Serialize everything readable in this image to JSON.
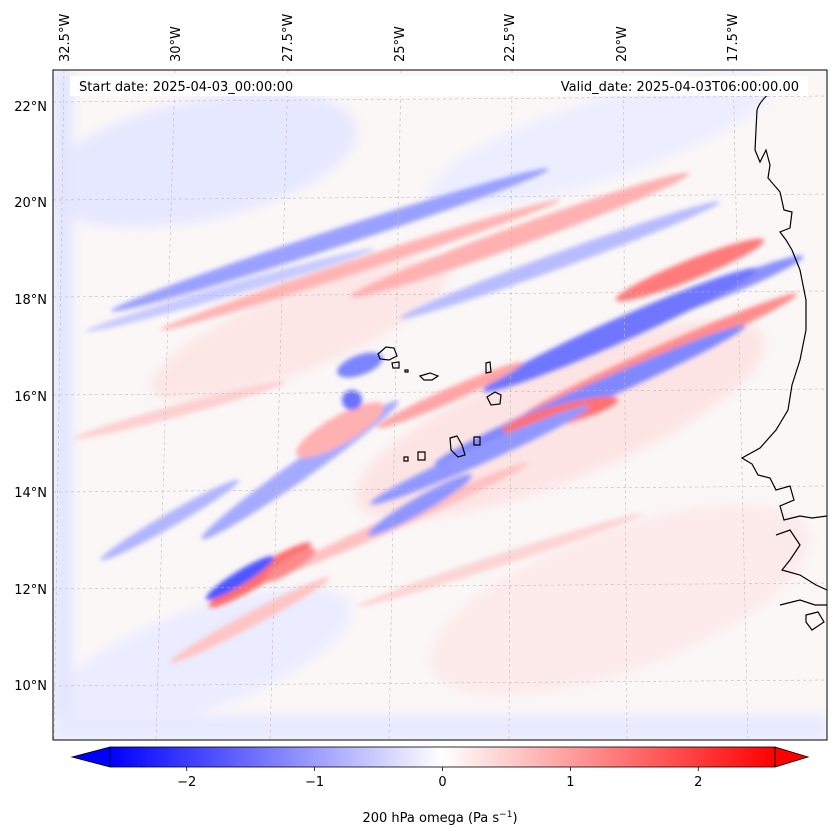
{
  "map": {
    "start_date": "Start date: 2025-04-03_00:00:00",
    "valid_date": "Valid_date: 2025-04-03T06:00:00.00",
    "lon_ticks": [
      "32.5°W",
      "30°W",
      "27.5°W",
      "25°W",
      "22.5°W",
      "20°W",
      "17.5°W"
    ],
    "lat_ticks": [
      "22°N",
      "20°N",
      "18°N",
      "16°N",
      "14°N",
      "12°N",
      "10°N"
    ],
    "lon_values": [
      -32.5,
      -30,
      -27.5,
      -25,
      -22.5,
      -20,
      -17.5
    ],
    "lat_values": [
      22,
      20,
      18,
      16,
      14,
      12,
      10
    ],
    "extent": {
      "lon_min": -33.0,
      "lon_max": -16.0,
      "lat_min": 8.85,
      "lat_max": 22.8
    },
    "gridlines": true,
    "field": "200 hPa omega",
    "colormap": "bwr",
    "colors": {
      "negative": "#0000ff",
      "zero": "#ffffff",
      "positive": "#ff0000",
      "coast": "#000000",
      "grid": "#b0b0b0"
    }
  },
  "colorbar": {
    "label_prefix": "200 hPa omega (Pa s",
    "label_exponent": "−1",
    "label_suffix": ")",
    "vmin": -2.6,
    "vmax": 2.6,
    "tick_values": [
      -2,
      -1,
      0,
      1,
      2
    ],
    "tick_labels": [
      "−2",
      "−1",
      "0",
      "1",
      "2"
    ],
    "extend": "both"
  }
}
